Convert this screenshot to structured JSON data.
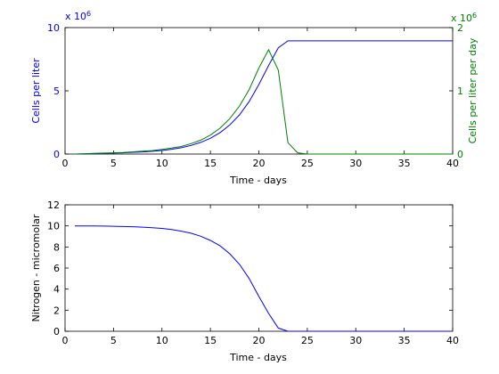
{
  "chart_data": [
    {
      "type": "line",
      "xlabel": "Time - days",
      "ylabel_left": "Cells per liter",
      "ylabel_right": "Cells per liter per day",
      "xlim": [
        0,
        40
      ],
      "ylim_left": [
        0,
        10
      ],
      "ylim_right": [
        0,
        2
      ],
      "x_ticks": [
        "0",
        "5",
        "10",
        "15",
        "20",
        "25",
        "30",
        "35",
        "40"
      ],
      "y_ticks_left": [
        "0",
        "5",
        "10"
      ],
      "y_ticks_right": [
        "0",
        "1",
        "2"
      ],
      "exponent_left": "x 10",
      "exponent_left_power": "6",
      "exponent_right": "x 10",
      "exponent_right_power": "6",
      "colors": {
        "left_axis": "#0000ff",
        "right_axis": "#008000",
        "axes": "#000000"
      },
      "grid": false,
      "series": [
        {
          "axis": "left",
          "color": "#0000ff",
          "x": [
            1,
            2,
            3,
            4,
            5,
            6,
            7,
            8,
            9,
            10,
            11,
            12,
            13,
            14,
            15,
            16,
            17,
            18,
            19,
            20,
            21,
            22,
            23,
            24,
            25,
            26,
            27,
            28,
            29,
            30,
            31,
            32,
            33,
            34,
            35,
            36,
            37,
            38,
            39,
            40
          ],
          "y": [
            0.0,
            0.02,
            0.04,
            0.06,
            0.08,
            0.1,
            0.14,
            0.17,
            0.22,
            0.28,
            0.38,
            0.5,
            0.68,
            0.92,
            1.25,
            1.7,
            2.3,
            3.1,
            4.15,
            5.5,
            7.0,
            8.4,
            8.95,
            8.95,
            8.95,
            8.95,
            8.95,
            8.95,
            8.95,
            8.95,
            8.95,
            8.95,
            8.95,
            8.95,
            8.95,
            8.95,
            8.95,
            8.95,
            8.95,
            8.95
          ]
        },
        {
          "axis": "right",
          "color": "#008000",
          "x": [
            1,
            2,
            3,
            4,
            5,
            6,
            7,
            8,
            9,
            10,
            11,
            12,
            13,
            14,
            15,
            16,
            17,
            18,
            19,
            20,
            21,
            22,
            23,
            24,
            25,
            26,
            27,
            28,
            29,
            30,
            31,
            32,
            33,
            34,
            35,
            36,
            37,
            38,
            39,
            40
          ],
          "y": [
            0.0,
            0.005,
            0.01,
            0.015,
            0.02,
            0.025,
            0.035,
            0.045,
            0.055,
            0.075,
            0.095,
            0.12,
            0.165,
            0.22,
            0.3,
            0.41,
            0.56,
            0.76,
            1.02,
            1.36,
            1.65,
            1.33,
            0.18,
            0.02,
            0.0,
            0.0,
            0.0,
            0.0,
            0.0,
            0.0,
            0.0,
            0.0,
            0.0,
            0.0,
            0.0,
            0.0,
            0.0,
            0.0,
            0.0,
            0.0
          ]
        }
      ]
    },
    {
      "type": "line",
      "xlabel": "Time - days",
      "ylabel": "Nitrogen - micromolar",
      "xlim": [
        0,
        40
      ],
      "ylim": [
        0,
        12
      ],
      "x_ticks": [
        "0",
        "5",
        "10",
        "15",
        "20",
        "25",
        "30",
        "35",
        "40"
      ],
      "y_ticks": [
        "0",
        "2",
        "4",
        "6",
        "8",
        "10",
        "12"
      ],
      "grid": false,
      "series": [
        {
          "color": "#0000ff",
          "x": [
            1,
            2,
            3,
            4,
            5,
            6,
            7,
            8,
            9,
            10,
            11,
            12,
            13,
            14,
            15,
            16,
            17,
            18,
            19,
            20,
            21,
            22,
            23,
            24,
            25,
            26,
            27,
            28,
            29,
            30,
            31,
            32,
            33,
            34,
            35,
            36,
            37,
            38,
            39,
            40
          ],
          "y": [
            10.0,
            10.0,
            10.0,
            9.98,
            9.96,
            9.94,
            9.92,
            9.88,
            9.83,
            9.76,
            9.65,
            9.5,
            9.3,
            9.02,
            8.62,
            8.1,
            7.35,
            6.35,
            5.0,
            3.3,
            1.7,
            0.3,
            0.0,
            0.0,
            0.0,
            0.0,
            0.0,
            0.0,
            0.0,
            0.0,
            0.0,
            0.0,
            0.0,
            0.0,
            0.0,
            0.0,
            0.0,
            0.0,
            0.0,
            0.0
          ]
        }
      ]
    }
  ]
}
